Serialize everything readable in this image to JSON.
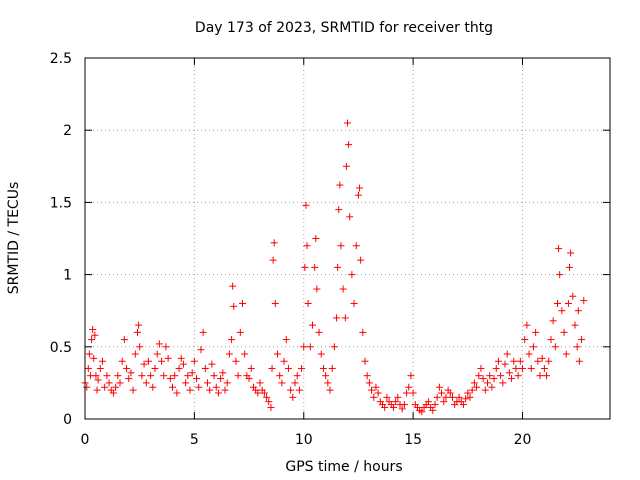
{
  "chart_data": {
    "type": "scatter",
    "title": "Day 173 of 2023, SRMTID for receiver thtg",
    "xlabel": "GPS time / hours",
    "ylabel": "SRMTID / TECUs",
    "xlim": [
      0,
      24
    ],
    "ylim": [
      0,
      2.5
    ],
    "xticks": [
      0,
      5,
      10,
      15,
      20
    ],
    "xtick_labels": [
      "0",
      "5",
      "10",
      "15",
      "20"
    ],
    "yticks": [
      0,
      0.5,
      1,
      1.5,
      2,
      2.5
    ],
    "ytick_labels": [
      "0",
      "0.5",
      "1",
      "1.5",
      "2",
      "2.5"
    ],
    "grid": true,
    "marker": "+",
    "marker_color": "#ff0000",
    "series": [
      {
        "name": "SRMTID",
        "points": [
          [
            0.0,
            0.25
          ],
          [
            0.08,
            0.22
          ],
          [
            0.15,
            0.35
          ],
          [
            0.2,
            0.45
          ],
          [
            0.25,
            0.3
          ],
          [
            0.3,
            0.55
          ],
          [
            0.35,
            0.62
          ],
          [
            0.4,
            0.42
          ],
          [
            0.45,
            0.58
          ],
          [
            0.5,
            0.3
          ],
          [
            0.55,
            0.2
          ],
          [
            0.6,
            0.27
          ],
          [
            0.7,
            0.35
          ],
          [
            0.8,
            0.4
          ],
          [
            0.9,
            0.22
          ],
          [
            1.0,
            0.3
          ],
          [
            1.1,
            0.25
          ],
          [
            1.2,
            0.2
          ],
          [
            1.3,
            0.18
          ],
          [
            1.4,
            0.22
          ],
          [
            1.5,
            0.3
          ],
          [
            1.6,
            0.25
          ],
          [
            1.7,
            0.4
          ],
          [
            1.8,
            0.55
          ],
          [
            1.9,
            0.35
          ],
          [
            2.0,
            0.28
          ],
          [
            2.1,
            0.32
          ],
          [
            2.2,
            0.2
          ],
          [
            2.3,
            0.45
          ],
          [
            2.4,
            0.6
          ],
          [
            2.45,
            0.65
          ],
          [
            2.5,
            0.5
          ],
          [
            2.6,
            0.3
          ],
          [
            2.7,
            0.38
          ],
          [
            2.8,
            0.25
          ],
          [
            2.9,
            0.4
          ],
          [
            3.0,
            0.3
          ],
          [
            3.1,
            0.22
          ],
          [
            3.2,
            0.35
          ],
          [
            3.3,
            0.45
          ],
          [
            3.4,
            0.52
          ],
          [
            3.5,
            0.4
          ],
          [
            3.6,
            0.3
          ],
          [
            3.7,
            0.5
          ],
          [
            3.8,
            0.42
          ],
          [
            3.9,
            0.28
          ],
          [
            4.0,
            0.22
          ],
          [
            4.1,
            0.3
          ],
          [
            4.2,
            0.18
          ],
          [
            4.3,
            0.35
          ],
          [
            4.4,
            0.42
          ],
          [
            4.5,
            0.38
          ],
          [
            4.6,
            0.25
          ],
          [
            4.7,
            0.3
          ],
          [
            4.8,
            0.2
          ],
          [
            4.9,
            0.32
          ],
          [
            5.0,
            0.4
          ],
          [
            5.1,
            0.28
          ],
          [
            5.2,
            0.22
          ],
          [
            5.3,
            0.48
          ],
          [
            5.4,
            0.6
          ],
          [
            5.5,
            0.35
          ],
          [
            5.6,
            0.25
          ],
          [
            5.7,
            0.2
          ],
          [
            5.8,
            0.38
          ],
          [
            5.9,
            0.3
          ],
          [
            6.0,
            0.22
          ],
          [
            6.1,
            0.18
          ],
          [
            6.2,
            0.28
          ],
          [
            6.3,
            0.32
          ],
          [
            6.4,
            0.2
          ],
          [
            6.5,
            0.25
          ],
          [
            6.6,
            0.45
          ],
          [
            6.7,
            0.55
          ],
          [
            6.75,
            0.92
          ],
          [
            6.8,
            0.78
          ],
          [
            6.9,
            0.4
          ],
          [
            7.0,
            0.3
          ],
          [
            7.1,
            0.6
          ],
          [
            7.2,
            0.8
          ],
          [
            7.3,
            0.45
          ],
          [
            7.4,
            0.3
          ],
          [
            7.5,
            0.28
          ],
          [
            7.6,
            0.35
          ],
          [
            7.7,
            0.22
          ],
          [
            7.8,
            0.2
          ],
          [
            7.9,
            0.18
          ],
          [
            8.0,
            0.25
          ],
          [
            8.1,
            0.2
          ],
          [
            8.2,
            0.18
          ],
          [
            8.3,
            0.15
          ],
          [
            8.4,
            0.12
          ],
          [
            8.5,
            0.08
          ],
          [
            8.55,
            0.35
          ],
          [
            8.6,
            1.1
          ],
          [
            8.65,
            1.22
          ],
          [
            8.7,
            0.8
          ],
          [
            8.8,
            0.45
          ],
          [
            8.9,
            0.3
          ],
          [
            9.0,
            0.25
          ],
          [
            9.1,
            0.4
          ],
          [
            9.2,
            0.55
          ],
          [
            9.3,
            0.35
          ],
          [
            9.4,
            0.2
          ],
          [
            9.5,
            0.15
          ],
          [
            9.6,
            0.25
          ],
          [
            9.7,
            0.3
          ],
          [
            9.8,
            0.2
          ],
          [
            9.9,
            0.35
          ],
          [
            10.0,
            0.5
          ],
          [
            10.05,
            1.05
          ],
          [
            10.1,
            1.48
          ],
          [
            10.15,
            1.2
          ],
          [
            10.2,
            0.8
          ],
          [
            10.3,
            0.5
          ],
          [
            10.4,
            0.65
          ],
          [
            10.5,
            1.05
          ],
          [
            10.55,
            1.25
          ],
          [
            10.6,
            0.9
          ],
          [
            10.7,
            0.6
          ],
          [
            10.8,
            0.45
          ],
          [
            10.9,
            0.35
          ],
          [
            11.0,
            0.3
          ],
          [
            11.1,
            0.25
          ],
          [
            11.2,
            0.2
          ],
          [
            11.3,
            0.35
          ],
          [
            11.4,
            0.5
          ],
          [
            11.5,
            0.7
          ],
          [
            11.55,
            1.05
          ],
          [
            11.6,
            1.45
          ],
          [
            11.65,
            1.62
          ],
          [
            11.7,
            1.2
          ],
          [
            11.8,
            0.9
          ],
          [
            11.9,
            0.7
          ],
          [
            11.95,
            1.75
          ],
          [
            12.0,
            2.05
          ],
          [
            12.05,
            1.9
          ],
          [
            12.1,
            1.4
          ],
          [
            12.2,
            1.0
          ],
          [
            12.3,
            0.8
          ],
          [
            12.4,
            1.2
          ],
          [
            12.5,
            1.55
          ],
          [
            12.55,
            1.6
          ],
          [
            12.6,
            1.1
          ],
          [
            12.7,
            0.6
          ],
          [
            12.8,
            0.4
          ],
          [
            12.9,
            0.3
          ],
          [
            13.0,
            0.25
          ],
          [
            13.1,
            0.2
          ],
          [
            13.2,
            0.15
          ],
          [
            13.3,
            0.22
          ],
          [
            13.4,
            0.18
          ],
          [
            13.5,
            0.12
          ],
          [
            13.6,
            0.1
          ],
          [
            13.7,
            0.08
          ],
          [
            13.8,
            0.15
          ],
          [
            13.9,
            0.12
          ],
          [
            14.0,
            0.1
          ],
          [
            14.1,
            0.08
          ],
          [
            14.2,
            0.12
          ],
          [
            14.3,
            0.15
          ],
          [
            14.4,
            0.1
          ],
          [
            14.5,
            0.07
          ],
          [
            14.6,
            0.1
          ],
          [
            14.7,
            0.18
          ],
          [
            14.8,
            0.22
          ],
          [
            14.9,
            0.3
          ],
          [
            15.0,
            0.18
          ],
          [
            15.1,
            0.1
          ],
          [
            15.2,
            0.08
          ],
          [
            15.3,
            0.06
          ],
          [
            15.4,
            0.05
          ],
          [
            15.5,
            0.08
          ],
          [
            15.6,
            0.1
          ],
          [
            15.7,
            0.12
          ],
          [
            15.8,
            0.08
          ],
          [
            15.9,
            0.06
          ],
          [
            16.0,
            0.1
          ],
          [
            16.1,
            0.15
          ],
          [
            16.2,
            0.22
          ],
          [
            16.3,
            0.18
          ],
          [
            16.4,
            0.12
          ],
          [
            16.5,
            0.15
          ],
          [
            16.6,
            0.2
          ],
          [
            16.7,
            0.18
          ],
          [
            16.8,
            0.15
          ],
          [
            16.9,
            0.1
          ],
          [
            17.0,
            0.12
          ],
          [
            17.1,
            0.15
          ],
          [
            17.2,
            0.12
          ],
          [
            17.3,
            0.1
          ],
          [
            17.4,
            0.14
          ],
          [
            17.5,
            0.18
          ],
          [
            17.6,
            0.15
          ],
          [
            17.7,
            0.2
          ],
          [
            17.8,
            0.25
          ],
          [
            17.9,
            0.22
          ],
          [
            18.0,
            0.3
          ],
          [
            18.1,
            0.35
          ],
          [
            18.2,
            0.28
          ],
          [
            18.3,
            0.2
          ],
          [
            18.4,
            0.25
          ],
          [
            18.5,
            0.3
          ],
          [
            18.6,
            0.22
          ],
          [
            18.7,
            0.28
          ],
          [
            18.8,
            0.35
          ],
          [
            18.9,
            0.4
          ],
          [
            19.0,
            0.3
          ],
          [
            19.1,
            0.25
          ],
          [
            19.2,
            0.38
          ],
          [
            19.3,
            0.45
          ],
          [
            19.4,
            0.32
          ],
          [
            19.5,
            0.28
          ],
          [
            19.6,
            0.4
          ],
          [
            19.7,
            0.35
          ],
          [
            19.8,
            0.3
          ],
          [
            19.9,
            0.4
          ],
          [
            20.0,
            0.35
          ],
          [
            20.1,
            0.55
          ],
          [
            20.2,
            0.65
          ],
          [
            20.3,
            0.45
          ],
          [
            20.4,
            0.35
          ],
          [
            20.5,
            0.5
          ],
          [
            20.6,
            0.6
          ],
          [
            20.7,
            0.4
          ],
          [
            20.8,
            0.3
          ],
          [
            20.9,
            0.42
          ],
          [
            21.0,
            0.35
          ],
          [
            21.1,
            0.3
          ],
          [
            21.2,
            0.4
          ],
          [
            21.3,
            0.55
          ],
          [
            21.4,
            0.68
          ],
          [
            21.5,
            0.5
          ],
          [
            21.6,
            0.8
          ],
          [
            21.65,
            1.18
          ],
          [
            21.7,
            1.0
          ],
          [
            21.8,
            0.75
          ],
          [
            21.9,
            0.6
          ],
          [
            22.0,
            0.45
          ],
          [
            22.1,
            0.8
          ],
          [
            22.15,
            1.05
          ],
          [
            22.2,
            1.15
          ],
          [
            22.3,
            0.85
          ],
          [
            22.4,
            0.65
          ],
          [
            22.5,
            0.5
          ],
          [
            22.55,
            0.75
          ],
          [
            22.6,
            0.4
          ],
          [
            22.7,
            0.55
          ],
          [
            22.8,
            0.82
          ]
        ]
      }
    ]
  }
}
